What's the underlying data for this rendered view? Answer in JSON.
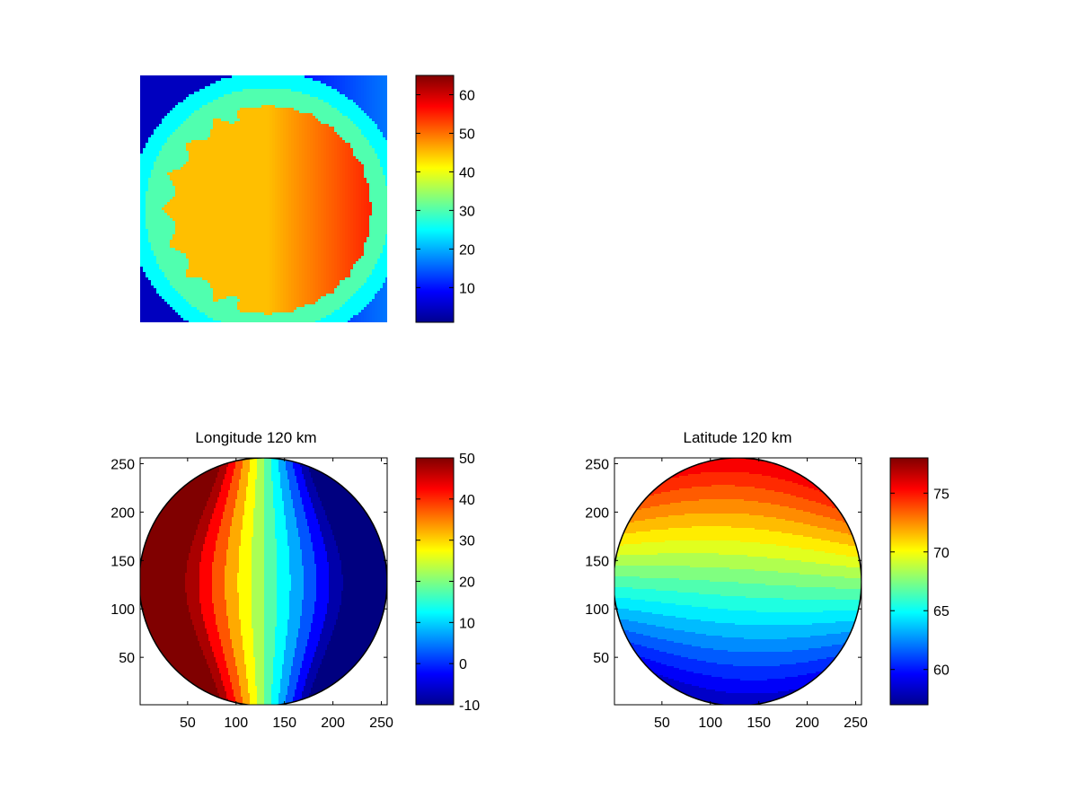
{
  "chart_data": [
    {
      "type": "heatmap",
      "title": "",
      "xlabel": "",
      "ylabel": "",
      "axes_visible": false,
      "colormap": "jet",
      "colorbar": {
        "range": [
          1,
          65
        ],
        "ticks": [
          10,
          20,
          30,
          40,
          50,
          60
        ]
      },
      "description_values": {
        "background": 5,
        "halo": 25,
        "disc_inner": 45,
        "disc_limb": 55
      }
    },
    {
      "type": "heatmap",
      "title": "Longitude 120 km",
      "xlabel": "",
      "ylabel": "",
      "xlim": [
        1,
        256
      ],
      "ylim": [
        1,
        256
      ],
      "xticks": [
        50,
        100,
        150,
        200,
        250
      ],
      "yticks": [
        50,
        100,
        150,
        200,
        250
      ],
      "grid": false,
      "colormap": "jet",
      "contour": true,
      "field": {
        "center": 128,
        "radius": 128,
        "center_value": 20,
        "slope_per_unit": -0.37,
        "contour_step": 5
      },
      "colorbar": {
        "range": [
          -10,
          50
        ],
        "ticks": [
          -10,
          0,
          10,
          20,
          30,
          40,
          50
        ]
      }
    },
    {
      "type": "heatmap",
      "title": "Latitude 120 km",
      "xlabel": "",
      "ylabel": "",
      "xlim": [
        1,
        256
      ],
      "ylim": [
        1,
        256
      ],
      "xticks": [
        50,
        100,
        150,
        200,
        250
      ],
      "yticks": [
        50,
        100,
        150,
        200,
        250
      ],
      "grid": false,
      "colormap": "jet",
      "contour": true,
      "field": {
        "center": 128,
        "radius": 128,
        "center_value": 67,
        "slope_per_unit": -0.07,
        "contour_step": 1
      },
      "colorbar": {
        "range": [
          57,
          78
        ],
        "ticks": [
          60,
          65,
          70,
          75
        ]
      }
    }
  ]
}
